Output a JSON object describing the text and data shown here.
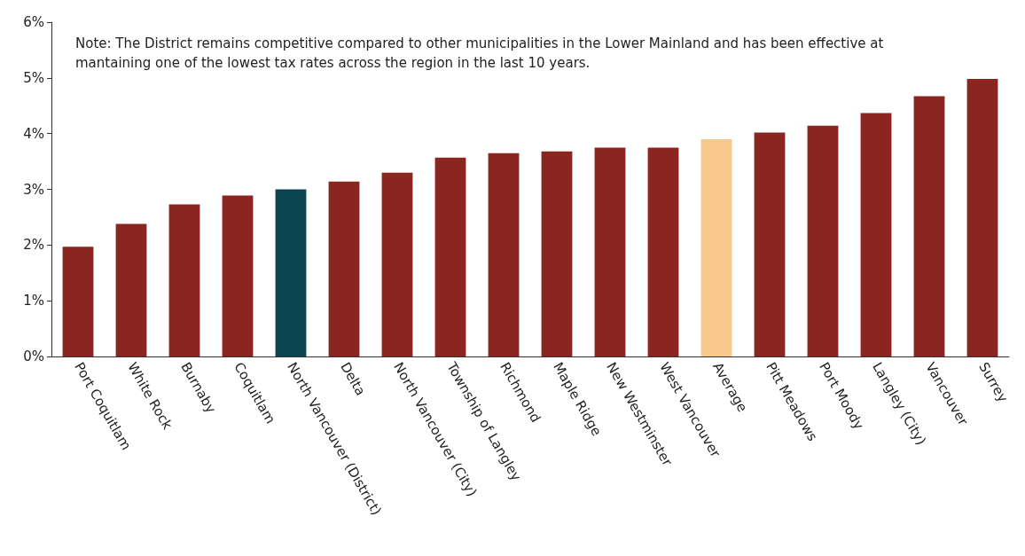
{
  "chart_data": {
    "type": "bar",
    "categories": [
      "Port Coquitlam",
      "White Rock",
      "Burnaby",
      "Coquitlam",
      "North Vancouver (District)",
      "Delta",
      "North Vancouver (City)",
      "Township of Langley",
      "Richmond",
      "Maple Ridge",
      "New Westminster",
      "West Vancouver",
      "Average",
      "Pitt Meadows",
      "Port Moody",
      "Langley (City)",
      "Vancouver",
      "Surrey"
    ],
    "values": [
      1.97,
      2.38,
      2.73,
      2.89,
      3.0,
      3.14,
      3.3,
      3.57,
      3.65,
      3.68,
      3.75,
      3.75,
      3.9,
      4.02,
      4.14,
      4.37,
      4.67,
      4.98
    ],
    "colors": [
      "#8b251f",
      "#8b251f",
      "#8b251f",
      "#8b251f",
      "#0b4650",
      "#8b251f",
      "#8b251f",
      "#8b251f",
      "#8b251f",
      "#8b251f",
      "#8b251f",
      "#8b251f",
      "#f9c98b",
      "#8b251f",
      "#8b251f",
      "#8b251f",
      "#8b251f",
      "#8b251f"
    ],
    "ylim": [
      0,
      6
    ],
    "yticks": [
      {
        "value": 0,
        "label": "0%"
      },
      {
        "value": 1,
        "label": "1%"
      },
      {
        "value": 2,
        "label": "2%"
      },
      {
        "value": 3,
        "label": "3%"
      },
      {
        "value": 4,
        "label": "4%"
      },
      {
        "value": 5,
        "label": "5%"
      },
      {
        "value": 6,
        "label": "6%"
      }
    ],
    "grid": false,
    "annotations": [
      "Note: The District remains competitive compared to other municipalities in the Lower Mainland and has been effective at mantaining one of the lowest tax rates across the region in the last 10 years."
    ]
  }
}
